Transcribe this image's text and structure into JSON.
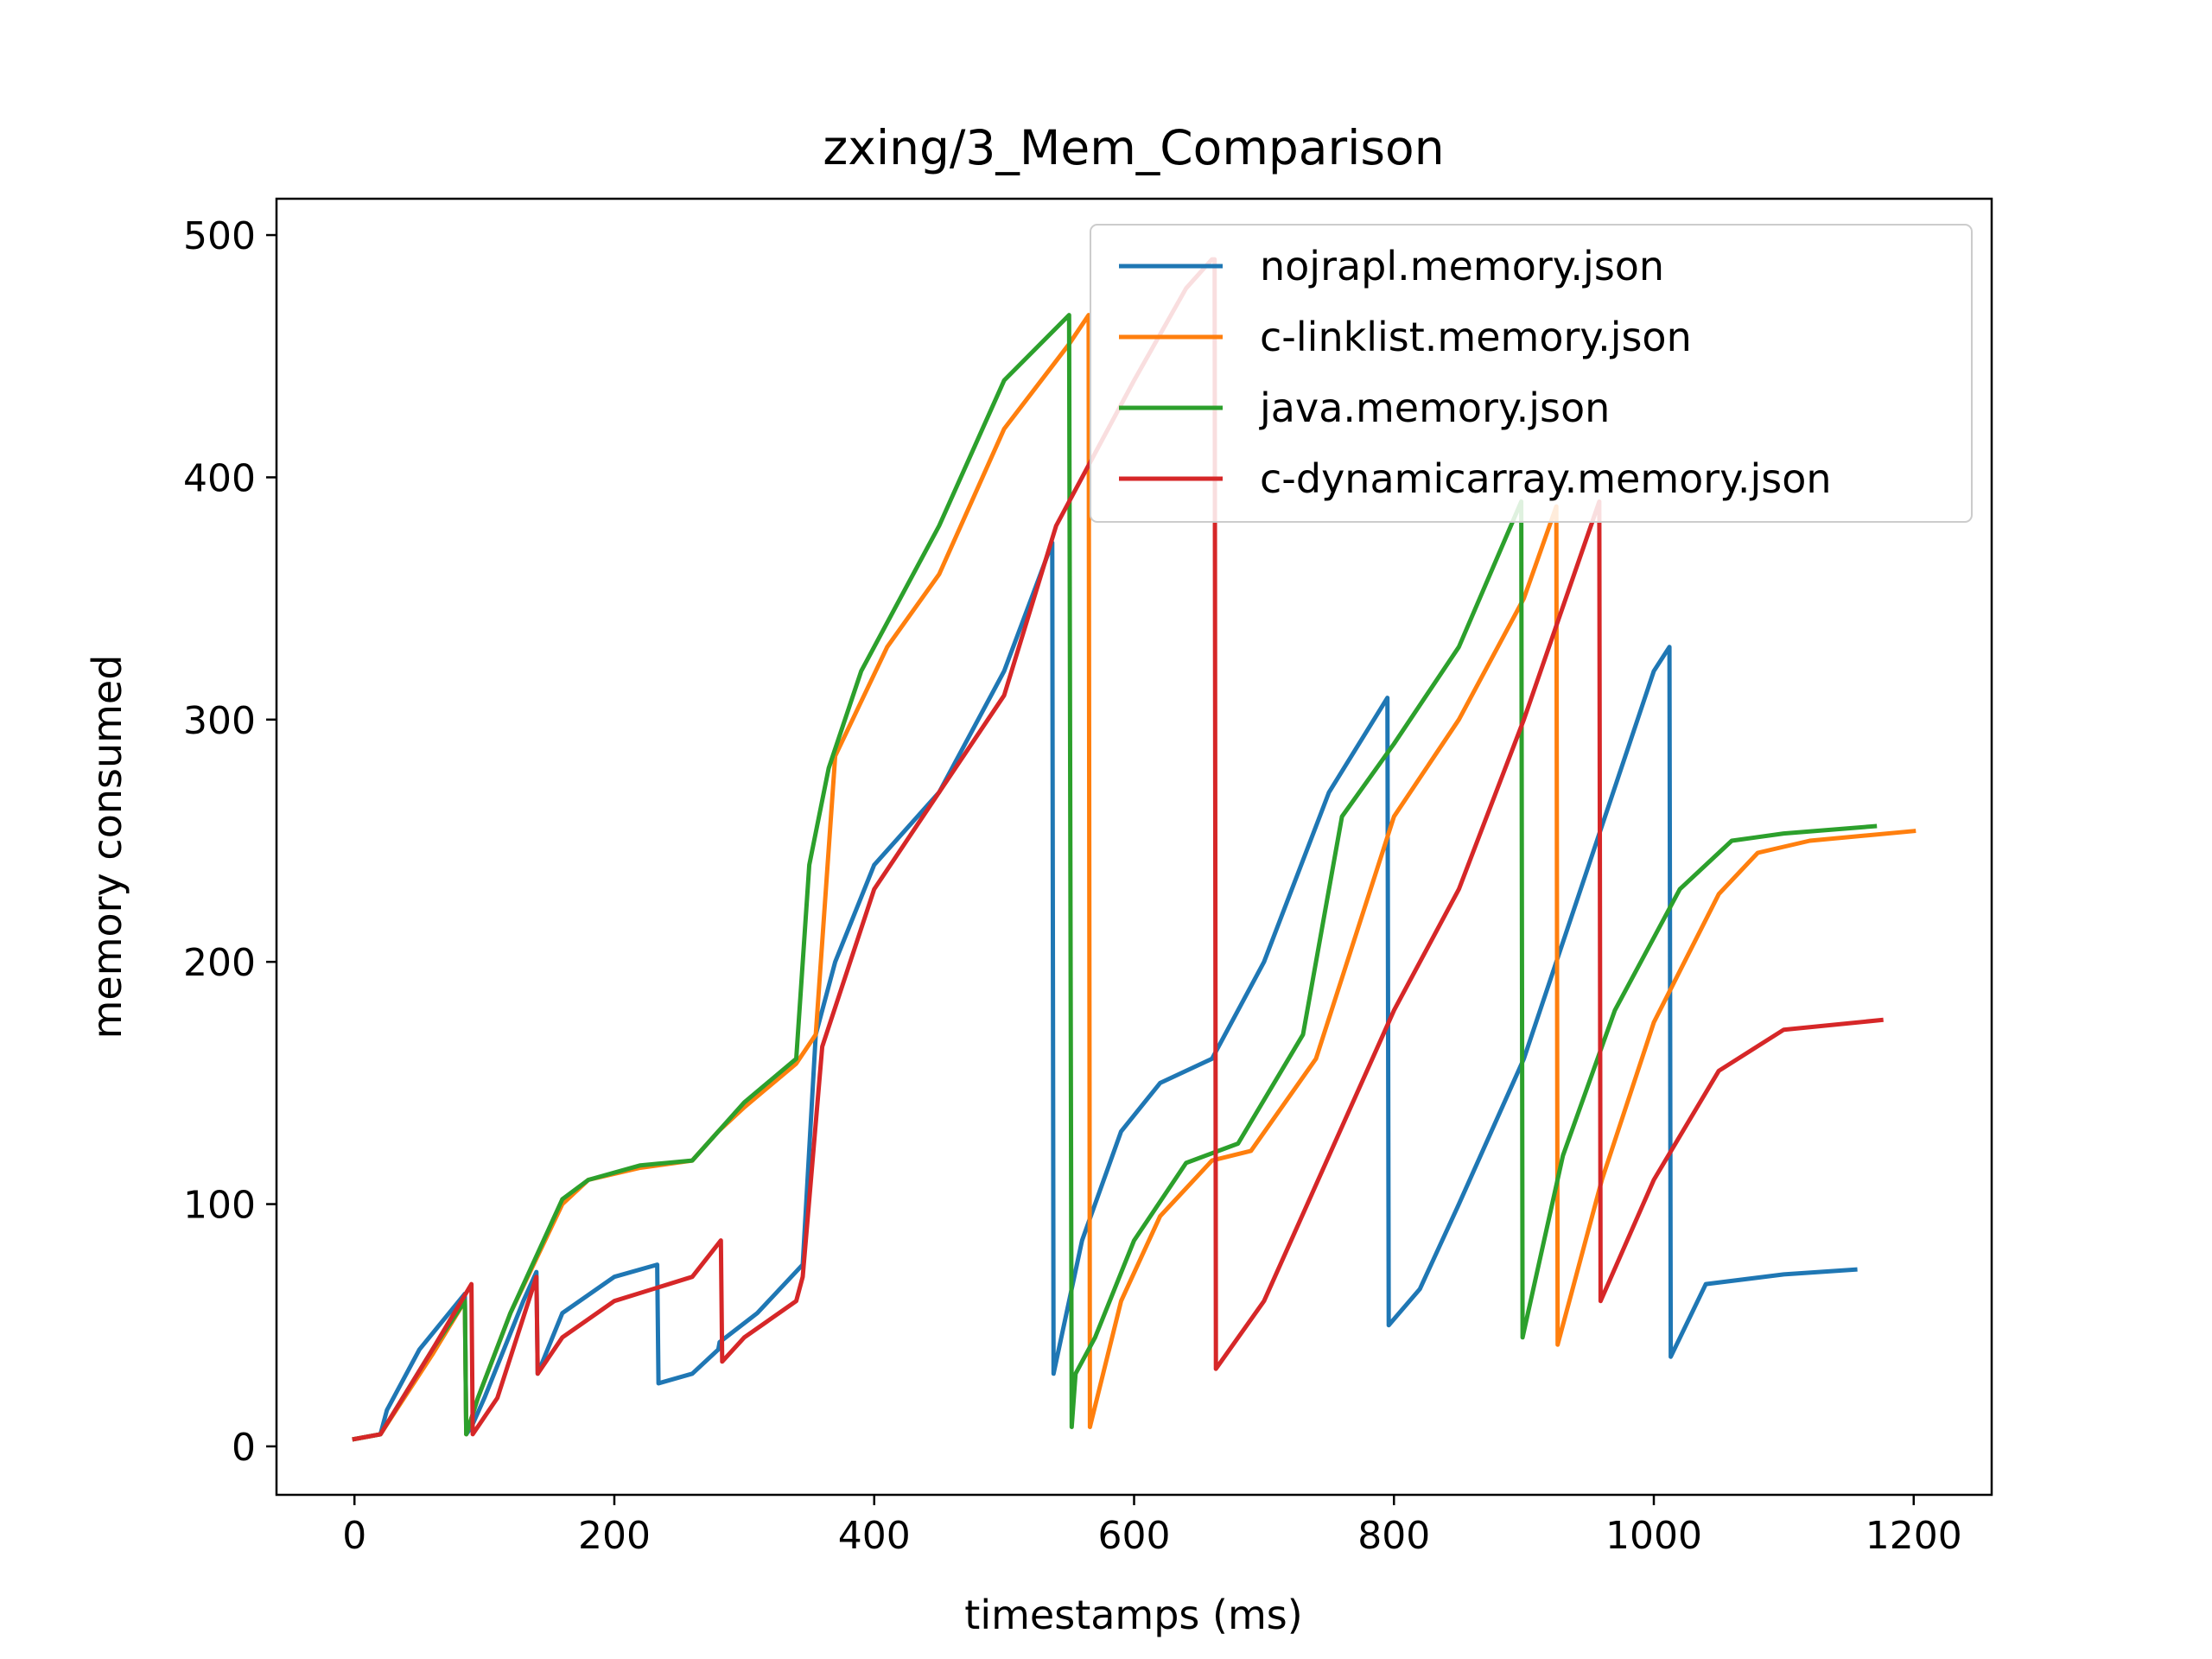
{
  "chart_data": {
    "type": "line",
    "title": "zxing/3_Mem_Comparison",
    "xlabel": "timestamps (ms)",
    "ylabel": "memory consumed",
    "xlim": [
      -60,
      1260
    ],
    "ylim": [
      -20,
      515
    ],
    "xticks": [
      0,
      200,
      400,
      600,
      800,
      1000,
      1200
    ],
    "yticks": [
      0,
      100,
      200,
      300,
      400,
      500
    ],
    "grid": false,
    "legend_position": "top-right",
    "series": [
      {
        "name": "nojrapl.memory.json",
        "color": "#1f77b4",
        "x": [
          0,
          20,
          25,
          50,
          85,
          86,
          90,
          100,
          130,
          140,
          141,
          160,
          200,
          233,
          234,
          260,
          280,
          281,
          310,
          345,
          355,
          370,
          400,
          450,
          500,
          537,
          538,
          560,
          590,
          620,
          660,
          700,
          750,
          795,
          796,
          820,
          850,
          900,
          950,
          1000,
          1012,
          1013,
          1040,
          1100,
          1155
        ],
        "y": [
          3,
          5,
          15,
          40,
          63,
          5,
          8,
          20,
          60,
          72,
          30,
          55,
          70,
          75,
          26,
          30,
          40,
          43,
          55,
          75,
          170,
          200,
          240,
          270,
          320,
          373,
          30,
          85,
          130,
          150,
          160,
          200,
          270,
          309,
          50,
          65,
          100,
          160,
          240,
          320,
          330,
          37,
          67,
          71,
          73
        ]
      },
      {
        "name": "c-linklist.memory.json",
        "color": "#ff7f0e",
        "x": [
          0,
          20,
          60,
          85,
          86,
          95,
          120,
          160,
          180,
          220,
          260,
          280,
          300,
          340,
          355,
          370,
          410,
          450,
          500,
          550,
          565,
          566,
          590,
          620,
          660,
          690,
          740,
          800,
          850,
          900,
          925,
          926,
          960,
          1000,
          1050,
          1080,
          1120,
          1200
        ],
        "y": [
          3,
          5,
          38,
          60,
          5,
          20,
          55,
          100,
          110,
          115,
          118,
          130,
          140,
          158,
          170,
          285,
          330,
          360,
          420,
          455,
          467,
          8,
          60,
          95,
          118,
          122,
          160,
          260,
          300,
          350,
          388,
          42,
          110,
          175,
          228,
          245,
          250,
          254
        ]
      },
      {
        "name": "java.memory.json",
        "color": "#2ca02c",
        "x": [
          0,
          20,
          60,
          85,
          86,
          95,
          120,
          160,
          180,
          220,
          260,
          280,
          300,
          340,
          350,
          365,
          390,
          450,
          500,
          550,
          552,
          555,
          570,
          600,
          640,
          680,
          730,
          760,
          800,
          850,
          898,
          899,
          930,
          970,
          1020,
          1060,
          1100,
          1170
        ],
        "y": [
          3,
          5,
          40,
          60,
          5,
          20,
          55,
          102,
          110,
          116,
          118,
          130,
          142,
          160,
          240,
          280,
          320,
          380,
          440,
          467,
          8,
          30,
          45,
          85,
          117,
          125,
          170,
          260,
          290,
          330,
          390,
          45,
          120,
          180,
          230,
          250,
          253,
          256
        ]
      },
      {
        "name": "c-dynamicarray.memory.json",
        "color": "#d62728",
        "x": [
          0,
          20,
          60,
          90,
          91,
          110,
          140,
          141,
          160,
          200,
          260,
          282,
          283,
          300,
          340,
          345,
          360,
          400,
          450,
          500,
          540,
          600,
          640,
          660,
          662,
          663,
          700,
          750,
          800,
          850,
          900,
          958,
          959,
          1000,
          1050,
          1100,
          1175
        ],
        "y": [
          3,
          5,
          40,
          67,
          5,
          20,
          70,
          30,
          45,
          60,
          70,
          85,
          35,
          45,
          60,
          70,
          165,
          230,
          270,
          310,
          380,
          440,
          478,
          490,
          490,
          32,
          60,
          120,
          180,
          230,
          300,
          390,
          60,
          110,
          155,
          172,
          176
        ]
      }
    ]
  }
}
